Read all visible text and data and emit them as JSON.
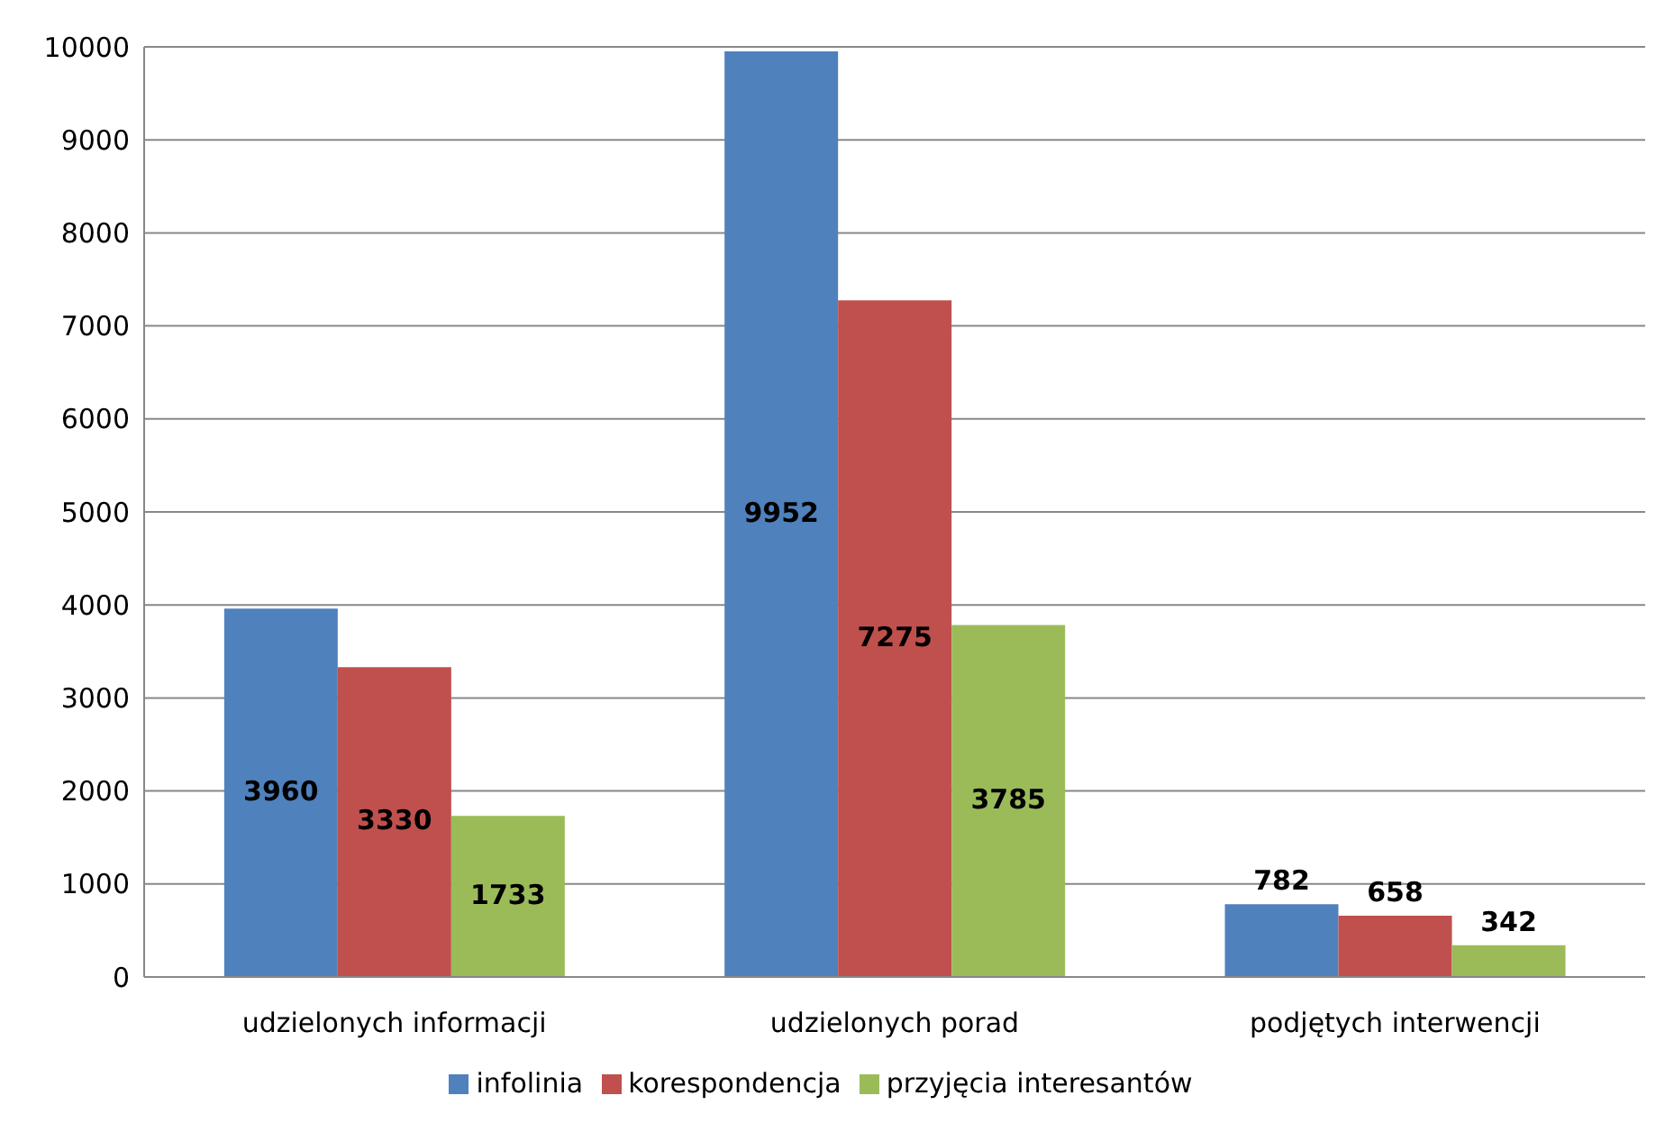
{
  "chart_data": {
    "type": "bar",
    "categories": [
      "udzielonych informacji",
      "udzielonych porad",
      "podjętych interwencji"
    ],
    "series": [
      {
        "name": "infolinia",
        "color": "#4f81bd",
        "values": [
          3960,
          9952,
          782
        ]
      },
      {
        "name": "korespondencja",
        "color": "#c0504d",
        "values": [
          3330,
          7275,
          658
        ]
      },
      {
        "name": "przyjęcia interesantów",
        "color": "#9bbb59",
        "values": [
          1733,
          3785,
          342
        ]
      }
    ],
    "ylim": [
      0,
      10000
    ],
    "yticks": [
      0,
      1000,
      2000,
      3000,
      4000,
      5000,
      6000,
      7000,
      8000,
      9000,
      10000
    ],
    "grid": "y",
    "legend": "bottom",
    "data_labels": true
  }
}
